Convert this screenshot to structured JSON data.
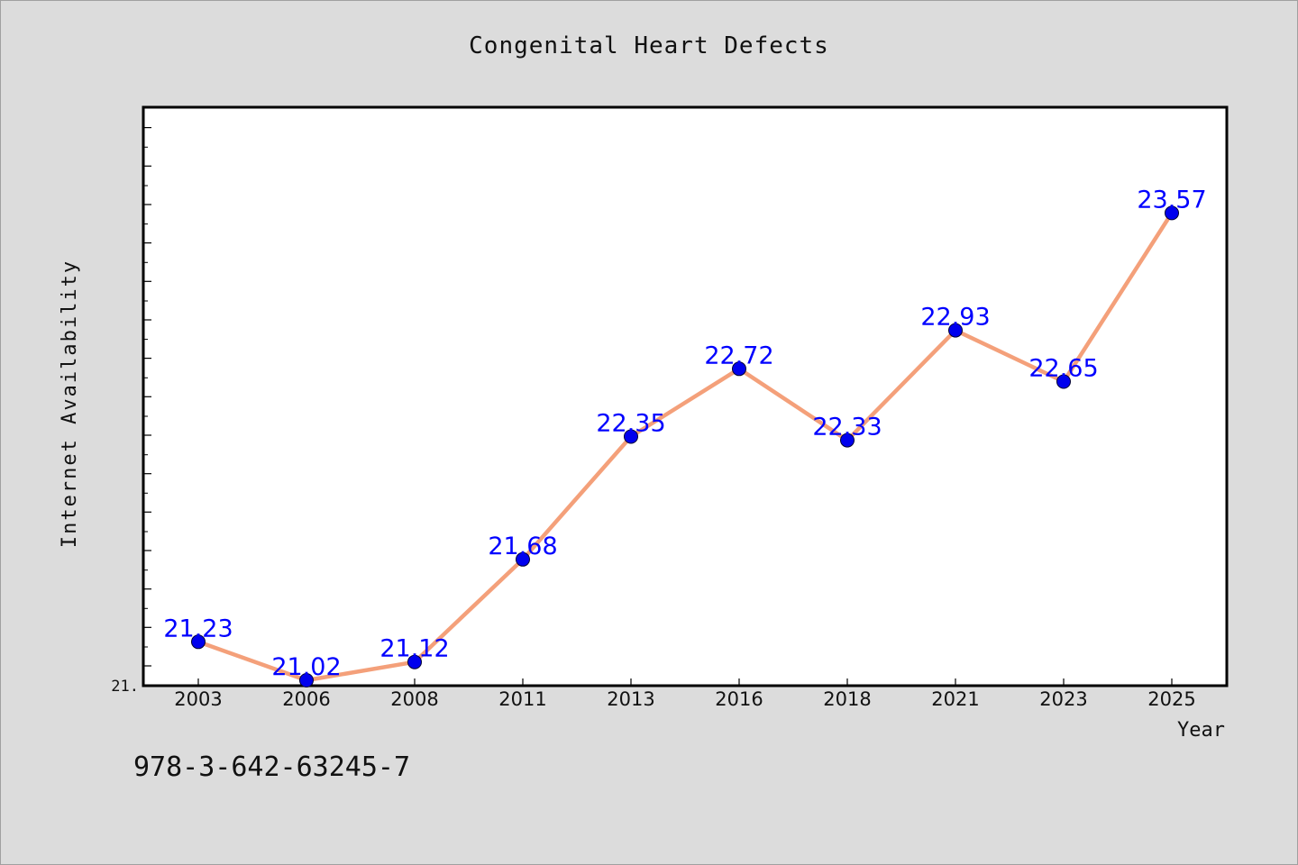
{
  "chart_data": {
    "type": "line",
    "title": "Congenital Heart Defects",
    "xlabel": "Year",
    "ylabel": "Internet Availability",
    "categories": [
      "2003",
      "2006",
      "2008",
      "2011",
      "2013",
      "2016",
      "2018",
      "2021",
      "2023",
      "2025"
    ],
    "series": [
      {
        "values": [
          21.23,
          21.02,
          21.12,
          21.68,
          22.35,
          22.72,
          22.33,
          22.93,
          22.65,
          23.57
        ],
        "labels": [
          "21.23",
          "21.02",
          "21.12",
          "21.68",
          "22.35",
          "22.72",
          "22.33",
          "22.93",
          "22.65",
          "23.57"
        ]
      }
    ],
    "y_tick_label": "21.",
    "ylim": [
      21.02,
      24.0
    ],
    "grid": false,
    "legend": "none",
    "colors": {
      "line": "#f4a07a",
      "marker": "#0000ee",
      "data_label": "#0000ff",
      "plot_bg": "#ffffff",
      "page_bg": "#dcdcdc"
    }
  },
  "footer": {
    "code": "978-3-642-63245-7"
  }
}
